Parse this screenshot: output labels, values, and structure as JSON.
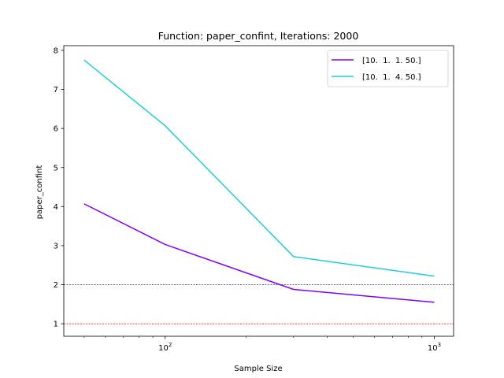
{
  "chart_data": {
    "type": "line",
    "title": "Function: paper_confint, Iterations: 2000",
    "xlabel": "Sample Size",
    "ylabel": "paper_confint",
    "xscale": "log",
    "xlim": [
      42,
      1180
    ],
    "ylim": [
      0.68,
      8.12
    ],
    "xticks": [
      {
        "value": 100,
        "base": "10",
        "exp": "2"
      },
      {
        "value": 1000,
        "base": "10",
        "exp": "3"
      }
    ],
    "yticks": [
      {
        "value": 1,
        "label": "1"
      },
      {
        "value": 2,
        "label": "2"
      },
      {
        "value": 3,
        "label": "3"
      },
      {
        "value": 4,
        "label": "4"
      },
      {
        "value": 5,
        "label": "5"
      },
      {
        "value": 6,
        "label": "6"
      },
      {
        "value": 7,
        "label": "7"
      },
      {
        "value": 8,
        "label": "8"
      }
    ],
    "x": [
      50,
      100,
      300,
      1000
    ],
    "series": [
      {
        "name": "[10.  1.  1. 50.]",
        "color": "#8000ff",
        "values": [
          4.07,
          3.03,
          1.88,
          1.55
        ]
      },
      {
        "name": "[10.  1.  4. 50.]",
        "color": "#1ecfd7",
        "values": [
          7.75,
          6.07,
          2.72,
          2.22
        ]
      }
    ],
    "reference_lines": [
      {
        "y": 2,
        "color": "#2e2e9e",
        "style": "dashed"
      },
      {
        "y": 1,
        "color": "#ff0000",
        "style": "dashed"
      }
    ],
    "grid": false,
    "legend_position": "top-right"
  }
}
